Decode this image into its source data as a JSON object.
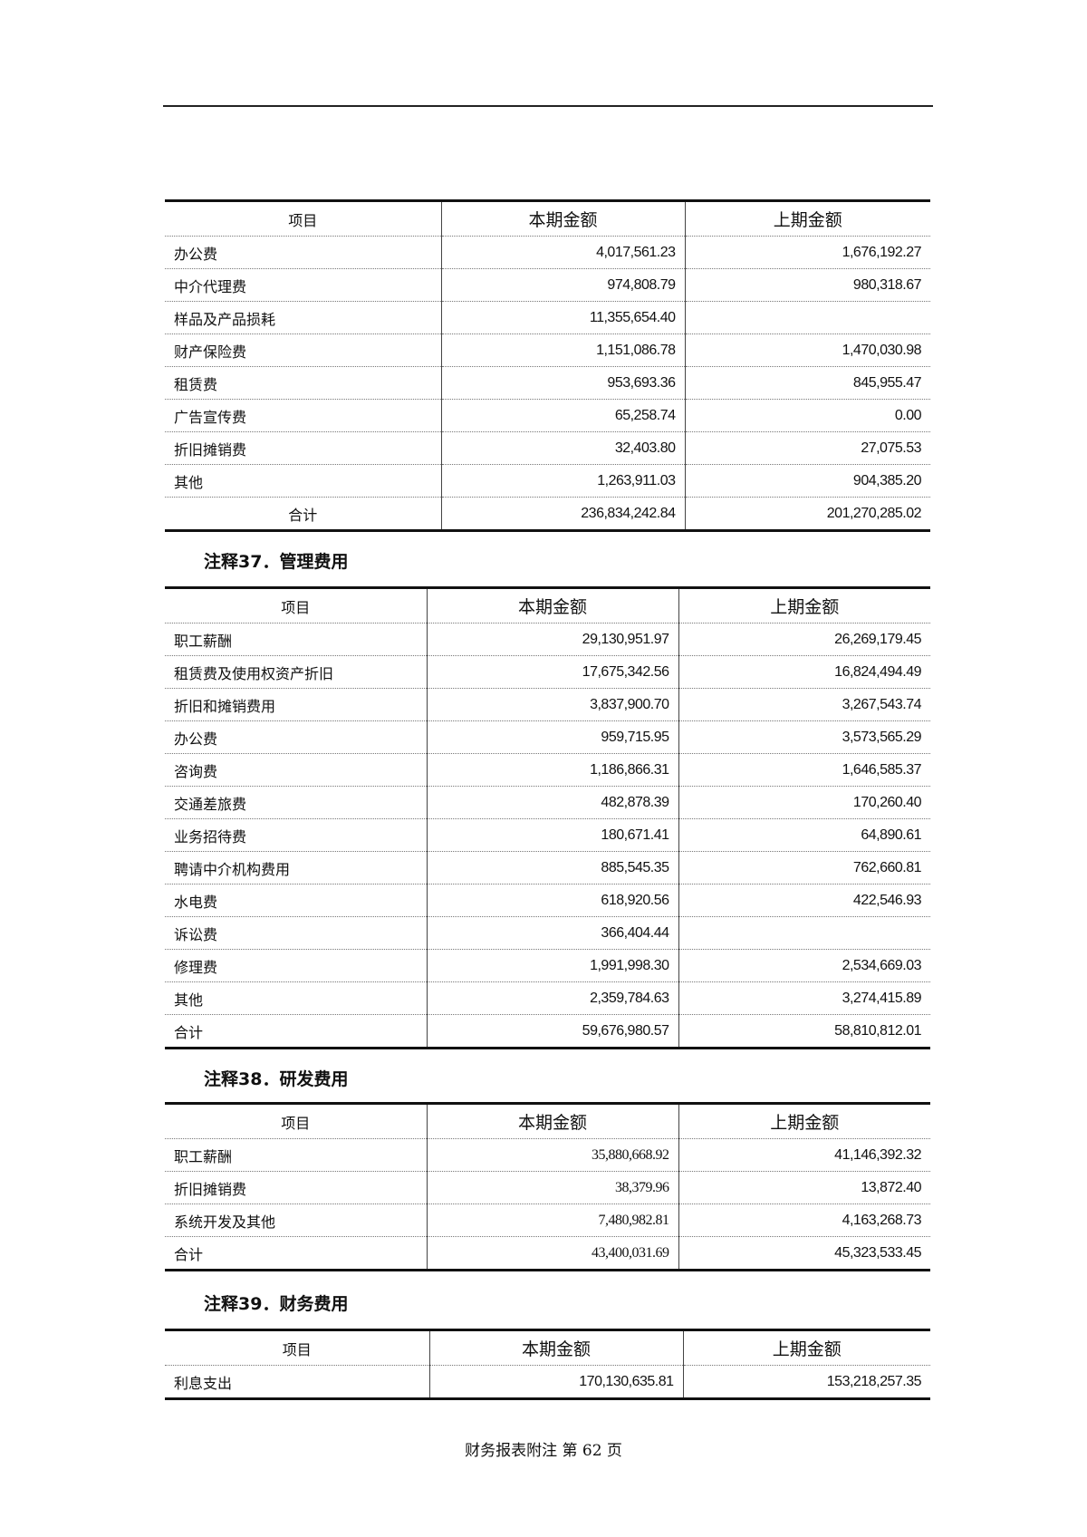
{
  "columns": {
    "item": "项目",
    "current": "本期金额",
    "prior": "上期金额"
  },
  "table_top": {
    "rows": [
      {
        "item": "办公费",
        "current": "4,017,561.23",
        "prior": "1,676,192.27"
      },
      {
        "item": "中介代理费",
        "current": "974,808.79",
        "prior": "980,318.67"
      },
      {
        "item": "样品及产品损耗",
        "current": "11,355,654.40",
        "prior": ""
      },
      {
        "item": "财产保险费",
        "current": "1,151,086.78",
        "prior": "1,470,030.98"
      },
      {
        "item": "租赁费",
        "current": "953,693.36",
        "prior": "845,955.47"
      },
      {
        "item": "广告宣传费",
        "current": "65,258.74",
        "prior": "0.00"
      },
      {
        "item": "折旧摊销费",
        "current": "32,403.80",
        "prior": "27,075.53"
      },
      {
        "item": "其他",
        "current": "1,263,911.03",
        "prior": "904,385.20"
      },
      {
        "item": "合计",
        "current": "236,834,242.84",
        "prior": "201,270,285.02"
      }
    ]
  },
  "note37": {
    "title": "注释37．管理费用",
    "rows": [
      {
        "item": "职工薪酬",
        "current": "29,130,951.97",
        "prior": "26,269,179.45"
      },
      {
        "item": "租赁费及使用权资产折旧",
        "current": "17,675,342.56",
        "prior": "16,824,494.49"
      },
      {
        "item": "折旧和摊销费用",
        "current": "3,837,900.70",
        "prior": "3,267,543.74"
      },
      {
        "item": "办公费",
        "current": "959,715.95",
        "prior": "3,573,565.29"
      },
      {
        "item": "咨询费",
        "current": "1,186,866.31",
        "prior": "1,646,585.37"
      },
      {
        "item": "交通差旅费",
        "current": "482,878.39",
        "prior": "170,260.40"
      },
      {
        "item": "业务招待费",
        "current": "180,671.41",
        "prior": "64,890.61"
      },
      {
        "item": "聘请中介机构费用",
        "current": "885,545.35",
        "prior": "762,660.81"
      },
      {
        "item": "水电费",
        "current": "618,920.56",
        "prior": "422,546.93"
      },
      {
        "item": "诉讼费",
        "current": "366,404.44",
        "prior": ""
      },
      {
        "item": "修理费",
        "current": "1,991,998.30",
        "prior": "2,534,669.03"
      },
      {
        "item": "其他",
        "current": "2,359,784.63",
        "prior": "3,274,415.89"
      },
      {
        "item": "合计",
        "current": "59,676,980.57",
        "prior": "58,810,812.01"
      }
    ]
  },
  "note38": {
    "title": "注释38．研发费用",
    "rows": [
      {
        "item": "职工薪酬",
        "current": "35,880,668.92",
        "prior": "41,146,392.32"
      },
      {
        "item": "折旧摊销费",
        "current": "38,379.96",
        "prior": "13,872.40"
      },
      {
        "item": "系统开发及其他",
        "current": "7,480,982.81",
        "prior": "4,163,268.73"
      },
      {
        "item": "合计",
        "current": "43,400,031.69",
        "prior": "45,323,533.45"
      }
    ]
  },
  "note39": {
    "title": "注释39．财务费用",
    "rows": [
      {
        "item": "利息支出",
        "current": "170,130,635.81",
        "prior": "153,218,257.35"
      }
    ]
  },
  "footer": "财务报表附注 第 62 页"
}
